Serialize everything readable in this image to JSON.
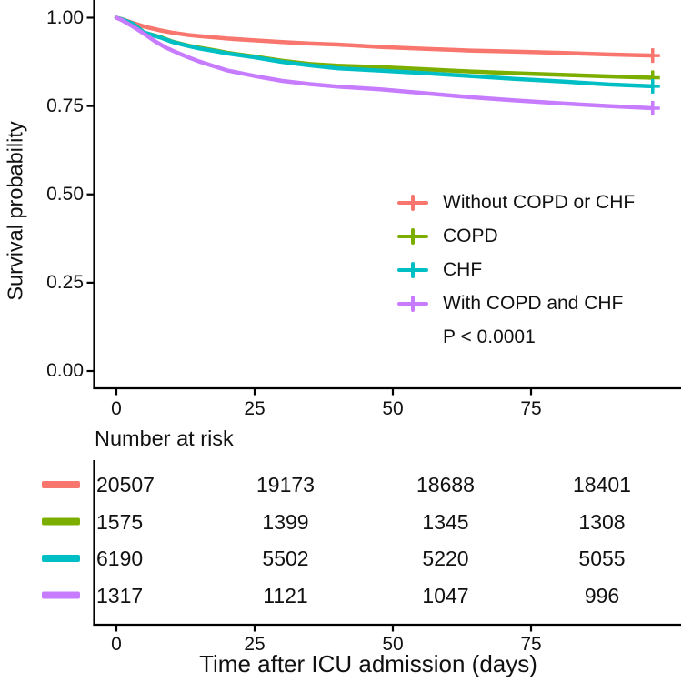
{
  "chart_data": {
    "type": "line",
    "subtype": "kaplan-meier-survival",
    "title": "",
    "xlabel": "Time after ICU admission (days)",
    "ylabel": "Survival probability",
    "xlim": [
      0,
      97
    ],
    "ylim": [
      0,
      1
    ],
    "x_ticks": [
      0,
      25,
      50,
      75
    ],
    "x_tick_labels": [
      "0",
      "25",
      "50",
      "75"
    ],
    "y_ticks": [
      0,
      0.25,
      0.5,
      0.75,
      1
    ],
    "y_tick_labels": [
      "0.00",
      "0.25",
      "0.50",
      "0.75",
      "1.00"
    ],
    "grid": false,
    "legend_position": "inside-right-middle",
    "p_value": "P < 0.0001",
    "axis_color": "#000000",
    "series": [
      {
        "name": "Without COPD or CHF",
        "color": "#F8766D",
        "censor_mark_at_end": true,
        "points": [
          [
            0,
            1
          ],
          [
            1,
            0.996
          ],
          [
            3,
            0.985
          ],
          [
            5,
            0.975
          ],
          [
            8,
            0.964
          ],
          [
            10,
            0.958
          ],
          [
            13,
            0.951
          ],
          [
            15,
            0.948
          ],
          [
            18,
            0.944
          ],
          [
            20,
            0.941
          ],
          [
            25,
            0.936
          ],
          [
            30,
            0.931
          ],
          [
            35,
            0.927
          ],
          [
            40,
            0.924
          ],
          [
            48,
            0.917
          ],
          [
            56,
            0.912
          ],
          [
            64,
            0.907
          ],
          [
            72,
            0.904
          ],
          [
            81,
            0.9
          ],
          [
            89,
            0.896
          ],
          [
            97,
            0.893
          ]
        ]
      },
      {
        "name": "COPD",
        "color": "#7CAE00",
        "censor_mark_at_end": true,
        "points": [
          [
            0,
            1
          ],
          [
            1,
            0.995
          ],
          [
            3,
            0.983
          ],
          [
            5,
            0.958
          ],
          [
            8,
            0.945
          ],
          [
            10,
            0.933
          ],
          [
            13,
            0.921
          ],
          [
            15,
            0.915
          ],
          [
            18,
            0.907
          ],
          [
            20,
            0.901
          ],
          [
            25,
            0.89
          ],
          [
            30,
            0.878
          ],
          [
            35,
            0.869
          ],
          [
            40,
            0.864
          ],
          [
            48,
            0.86
          ],
          [
            56,
            0.854
          ],
          [
            64,
            0.848
          ],
          [
            72,
            0.843
          ],
          [
            81,
            0.838
          ],
          [
            89,
            0.834
          ],
          [
            97,
            0.83
          ]
        ]
      },
      {
        "name": "CHF",
        "color": "#00BFC4",
        "censor_mark_at_end": true,
        "points": [
          [
            0,
            1
          ],
          [
            1,
            0.995
          ],
          [
            3,
            0.983
          ],
          [
            5,
            0.958
          ],
          [
            8,
            0.944
          ],
          [
            10,
            0.932
          ],
          [
            13,
            0.92
          ],
          [
            15,
            0.913
          ],
          [
            18,
            0.905
          ],
          [
            20,
            0.899
          ],
          [
            25,
            0.888
          ],
          [
            30,
            0.875
          ],
          [
            35,
            0.865
          ],
          [
            40,
            0.857
          ],
          [
            48,
            0.85
          ],
          [
            56,
            0.843
          ],
          [
            64,
            0.835
          ],
          [
            72,
            0.827
          ],
          [
            81,
            0.819
          ],
          [
            89,
            0.811
          ],
          [
            97,
            0.806
          ]
        ]
      },
      {
        "name": "With COPD and CHF",
        "color": "#C77CFF",
        "censor_mark_at_end": true,
        "points": [
          [
            0,
            1
          ],
          [
            1,
            0.993
          ],
          [
            3,
            0.975
          ],
          [
            5,
            0.955
          ],
          [
            7,
            0.933
          ],
          [
            9,
            0.915
          ],
          [
            11,
            0.901
          ],
          [
            13,
            0.888
          ],
          [
            15,
            0.876
          ],
          [
            18,
            0.861
          ],
          [
            20,
            0.851
          ],
          [
            25,
            0.835
          ],
          [
            30,
            0.821
          ],
          [
            35,
            0.812
          ],
          [
            40,
            0.805
          ],
          [
            48,
            0.797
          ],
          [
            56,
            0.786
          ],
          [
            64,
            0.775
          ],
          [
            72,
            0.766
          ],
          [
            81,
            0.757
          ],
          [
            89,
            0.75
          ],
          [
            97,
            0.744
          ]
        ]
      }
    ]
  },
  "risk_table": {
    "title": "Number at risk",
    "time_points": [
      0,
      25,
      50,
      75
    ],
    "rows": [
      {
        "group": "Without COPD or CHF",
        "color": "#F8766D",
        "values": [
          "20507",
          "19173",
          "18688",
          "18401"
        ]
      },
      {
        "group": "COPD",
        "color": "#7CAE00",
        "values": [
          "1575",
          "1399",
          "1345",
          "1308"
        ]
      },
      {
        "group": "CHF",
        "color": "#00BFC4",
        "values": [
          "6190",
          "5502",
          "5220",
          "5055"
        ]
      },
      {
        "group": "With COPD and CHF",
        "color": "#C77CFF",
        "values": [
          "1317",
          "1121",
          "1047",
          "996"
        ]
      }
    ]
  }
}
